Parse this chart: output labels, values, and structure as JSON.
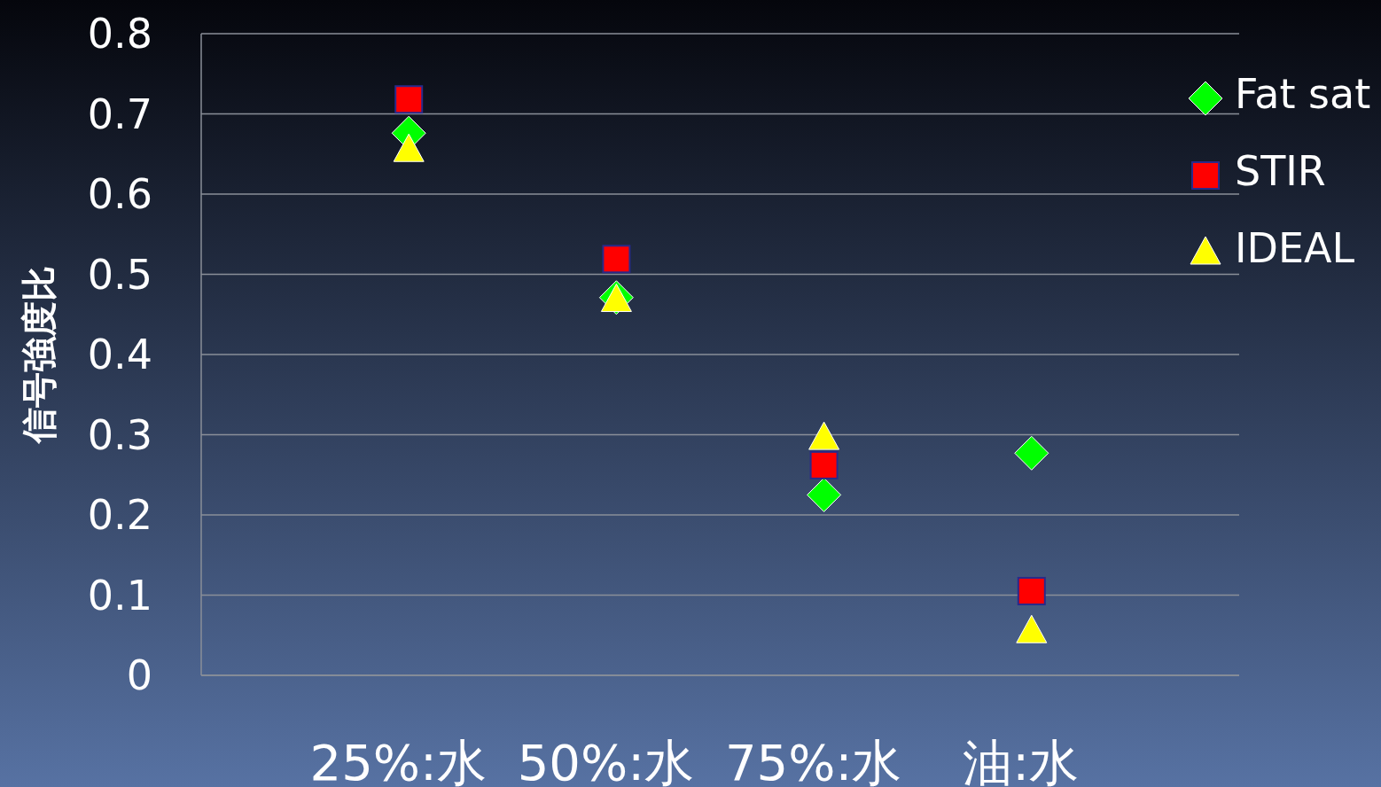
{
  "chart_data": {
    "type": "scatter",
    "ylabel": "信号強度比",
    "categories": [
      "25%:水",
      "50%:水",
      "75%:水",
      "油:水"
    ],
    "series": [
      {
        "name": "Fat sat",
        "color": "#00ff00",
        "marker": "diamond",
        "values": [
          0.676,
          0.471,
          0.225,
          0.277
        ]
      },
      {
        "name": "STIR",
        "color": "#ff0000",
        "marker": "square",
        "values": [
          0.718,
          0.519,
          0.262,
          0.105
        ]
      },
      {
        "name": "IDEAL",
        "color": "#ffff00",
        "marker": "triangle",
        "values": [
          0.655,
          0.468,
          0.296,
          0.055
        ]
      }
    ],
    "ylim": [
      0,
      0.8
    ],
    "yticks": [
      0,
      0.1,
      0.2,
      0.3,
      0.4,
      0.5,
      0.6,
      0.7,
      0.8
    ],
    "grid": "y",
    "legend": "top right"
  }
}
